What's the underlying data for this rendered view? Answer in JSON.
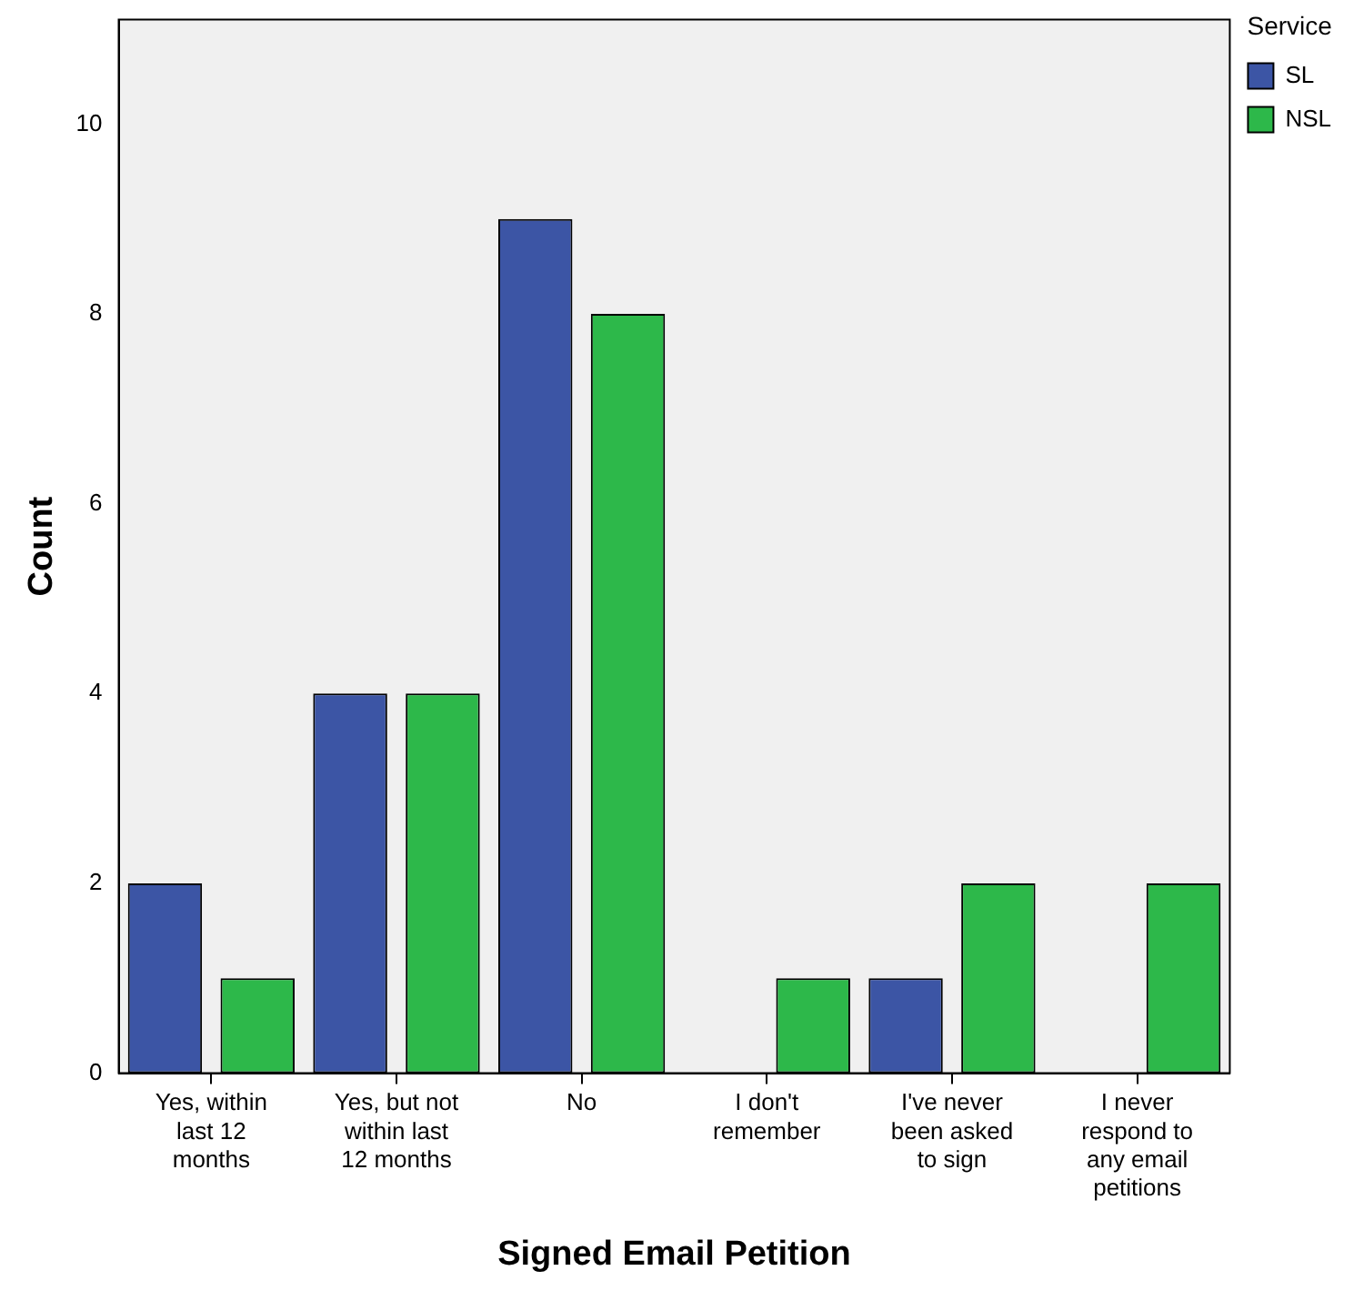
{
  "chart_data": {
    "type": "bar",
    "xlabel": "Signed Email Petition",
    "ylabel": "Count",
    "legend_title": "Service",
    "categories": [
      "Yes, within last 12 months",
      "Yes, but not within last 12 months",
      "No",
      "I don't remember",
      "I've never been asked to sign",
      "I never respond to any email petitions"
    ],
    "series": [
      {
        "name": "SL",
        "color": "#3c55a5",
        "values": [
          2,
          4,
          9,
          null,
          1,
          null
        ]
      },
      {
        "name": "NSL",
        "color": "#2db84a",
        "values": [
          1,
          4,
          8,
          1,
          2,
          2
        ]
      }
    ],
    "ylim": [
      0,
      11.1
    ],
    "yticks": [
      0,
      2,
      4,
      6,
      8,
      10
    ],
    "grid": false,
    "legend": "top right"
  }
}
